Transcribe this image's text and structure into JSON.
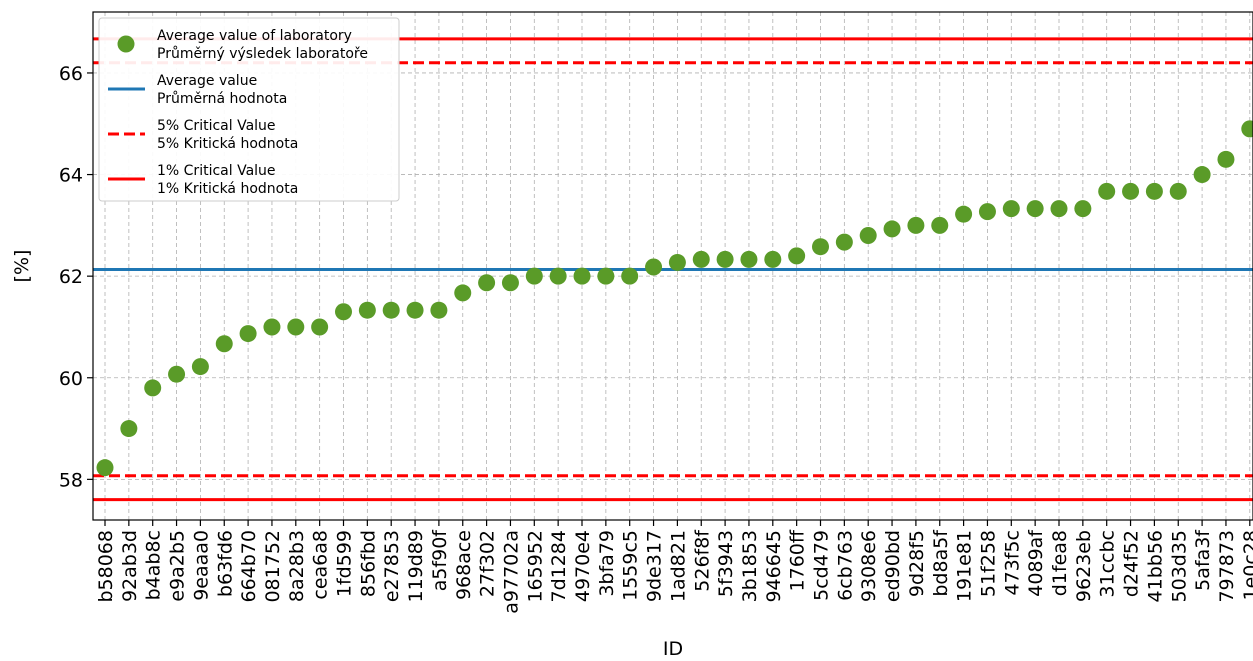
{
  "chart_data": {
    "type": "scatter",
    "xlabel": "ID",
    "ylabel": "[%]",
    "ylim": [
      57.2,
      67.2
    ],
    "yticks": [
      58,
      60,
      62,
      64,
      66
    ],
    "grid": true,
    "legend_position": "top-left",
    "categories": [
      "b58068",
      "92ab3d",
      "b4ab8c",
      "e9a2b5",
      "9eaaa0",
      "b63fd6",
      "664b70",
      "081752",
      "8a28b3",
      "cea6a8",
      "1fd599",
      "856fbd",
      "e27853",
      "119d89",
      "a5f90f",
      "968ace",
      "27f302",
      "a97702a",
      "165952",
      "7d1284",
      "4970e4",
      "3bfa79",
      "1559c5",
      "9de317",
      "1ad821",
      "526f8f",
      "5f3943",
      "3b1853",
      "946645",
      "1760ff",
      "5cd479",
      "6cb763",
      "9308e6",
      "ed90bd",
      "9d28f5",
      "bd8a5f",
      "191e81",
      "51f258",
      "473f5c",
      "4089af",
      "d1fea8",
      "9623eb",
      "31ccbc",
      "d24f52",
      "41bb56",
      "503d35",
      "5afa3f",
      "797873",
      "1e0c28"
    ],
    "values": [
      58.23,
      59.0,
      59.8,
      60.07,
      60.22,
      60.67,
      60.87,
      61.0,
      61.0,
      61.0,
      61.3,
      61.33,
      61.33,
      61.33,
      61.33,
      61.67,
      61.87,
      61.87,
      62.0,
      62.0,
      62.0,
      62.0,
      62.0,
      62.18,
      62.27,
      62.33,
      62.33,
      62.33,
      62.33,
      62.4,
      62.58,
      62.67,
      62.8,
      62.93,
      63.0,
      63.0,
      63.22,
      63.27,
      63.33,
      63.33,
      63.33,
      63.33,
      63.67,
      63.67,
      63.67,
      63.67,
      64.0,
      64.3,
      64.9
    ],
    "series_color": "#5a9b28",
    "reference_lines": [
      {
        "name": "Average value\nPrůměrná hodnota",
        "values": [
          62.13
        ],
        "color": "#1f77b4",
        "style": "solid"
      },
      {
        "name": "5% Critical Value\n5% Kritická hodnota",
        "values": [
          58.07,
          66.2
        ],
        "color": "#ff0000",
        "style": "dashed"
      },
      {
        "name": "1% Critical Value\n1% Kritická hodnota",
        "values": [
          57.6,
          66.67
        ],
        "color": "#ff0000",
        "style": "solid"
      }
    ],
    "legend": [
      {
        "marker": "dot",
        "color": "#5a9b28",
        "line1": "Average value of laboratory",
        "line2": "Průměrný výsledek laboratoře"
      },
      {
        "marker": "solid",
        "color": "#1f77b4",
        "line1": "Average value",
        "line2": "Průměrná hodnota"
      },
      {
        "marker": "dashed",
        "color": "#ff0000",
        "line1": "5% Critical Value",
        "line2": "5% Kritická hodnota"
      },
      {
        "marker": "solid",
        "color": "#ff0000",
        "line1": "1% Critical Value",
        "line2": "1% Kritická hodnota"
      }
    ]
  }
}
